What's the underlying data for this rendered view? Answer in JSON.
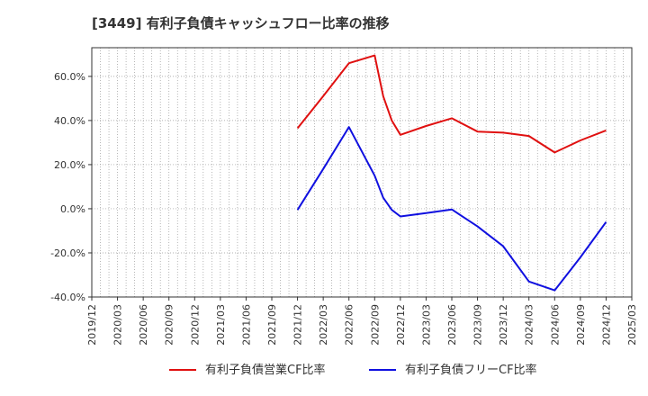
{
  "chart_data": {
    "type": "line",
    "title": "[3449]  有利子負債キャッシュフロー比率の推移",
    "ylim": [
      -40,
      73
    ],
    "yticks": [
      -40,
      -20,
      0,
      20,
      40,
      60
    ],
    "ytick_labels": [
      "-40.0%",
      "-20.0%",
      "0.0%",
      "20.0%",
      "40.0%",
      "60.0%"
    ],
    "x_range": [
      "2019-12",
      "2025-03"
    ],
    "xtick_labels": [
      "2019/12",
      "2020/03",
      "2020/06",
      "2020/09",
      "2020/12",
      "2021/03",
      "2021/06",
      "2021/09",
      "2021/12",
      "2022/03",
      "2022/06",
      "2022/09",
      "2022/12",
      "2023/03",
      "2023/06",
      "2023/09",
      "2023/12",
      "2024/03",
      "2024/06",
      "2024/09",
      "2024/12",
      "2025/03"
    ],
    "grid": true,
    "legend_position": "bottom",
    "series": [
      {
        "name": "有利子負債営業CF比率",
        "color": "#e01010",
        "points": [
          {
            "x": "2021-12",
            "y": 36.5
          },
          {
            "x": "2022-03",
            "y": 51
          },
          {
            "x": "2022-06",
            "y": 66
          },
          {
            "x": "2022-09",
            "y": 69.5
          },
          {
            "x": "2022-10",
            "y": 51
          },
          {
            "x": "2022-11",
            "y": 40
          },
          {
            "x": "2022-12",
            "y": 33.5
          },
          {
            "x": "2023-03",
            "y": 37.5
          },
          {
            "x": "2023-06",
            "y": 41
          },
          {
            "x": "2023-09",
            "y": 35
          },
          {
            "x": "2023-12",
            "y": 34.5
          },
          {
            "x": "2024-03",
            "y": 33
          },
          {
            "x": "2024-06",
            "y": 25.5
          },
          {
            "x": "2024-09",
            "y": 31
          },
          {
            "x": "2024-12",
            "y": 35.5
          }
        ]
      },
      {
        "name": "有利子負債フリーCF比率",
        "color": "#1010e0",
        "points": [
          {
            "x": "2021-12",
            "y": -0.5
          },
          {
            "x": "2022-03",
            "y": 18
          },
          {
            "x": "2022-06",
            "y": 37
          },
          {
            "x": "2022-09",
            "y": 15
          },
          {
            "x": "2022-10",
            "y": 5
          },
          {
            "x": "2022-11",
            "y": -0.5
          },
          {
            "x": "2022-12",
            "y": -3.5
          },
          {
            "x": "2023-03",
            "y": -2
          },
          {
            "x": "2023-06",
            "y": -0.3
          },
          {
            "x": "2023-09",
            "y": -8
          },
          {
            "x": "2023-12",
            "y": -17
          },
          {
            "x": "2024-03",
            "y": -33
          },
          {
            "x": "2024-06",
            "y": -37
          },
          {
            "x": "2024-09",
            "y": -22
          },
          {
            "x": "2024-12",
            "y": -6
          }
        ]
      }
    ]
  }
}
